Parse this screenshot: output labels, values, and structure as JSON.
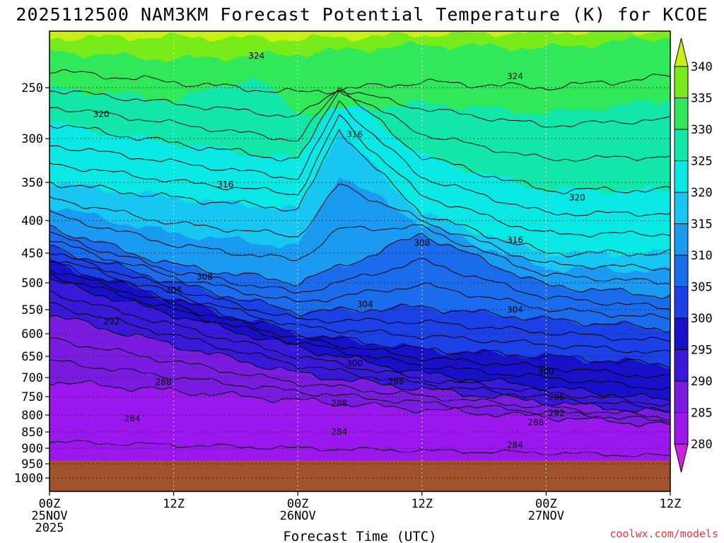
{
  "chart_data": {
    "type": "heatmap",
    "title": "2025112500 NAM3KM Forecast Potential Temperature (K) for KCOE",
    "xlabel": "Forecast Time (UTC)",
    "ylabel": "",
    "x_ticks": [
      {
        "hour": 0,
        "lines": [
          "00Z",
          "25NOV",
          "2025"
        ]
      },
      {
        "hour": 12,
        "lines": [
          "12Z"
        ]
      },
      {
        "hour": 24,
        "lines": [
          "00Z",
          "26NOV"
        ]
      },
      {
        "hour": 36,
        "lines": [
          "12Z"
        ]
      },
      {
        "hour": 48,
        "lines": [
          "00Z",
          "27NOV"
        ]
      },
      {
        "hour": 60,
        "lines": [
          "12Z"
        ]
      }
    ],
    "x_range_hours": [
      0,
      60
    ],
    "y_ticks": [
      250,
      300,
      350,
      400,
      450,
      500,
      550,
      600,
      650,
      700,
      750,
      800,
      850,
      900,
      950,
      1000
    ],
    "y_range_hpa": [
      200,
      1050
    ],
    "ground_level_hpa": 945,
    "colorbar": {
      "levels": [
        275,
        280,
        285,
        290,
        295,
        300,
        305,
        310,
        315,
        320,
        325,
        330,
        335,
        340,
        345
      ],
      "labels": [
        280,
        285,
        290,
        295,
        300,
        305,
        310,
        315,
        320,
        325,
        330,
        335,
        340
      ],
      "colors": [
        "#cc22dd",
        "#9a18ee",
        "#7a1ce0",
        "#3a18d8",
        "#1810c8",
        "#1a40e6",
        "#1a6cec",
        "#1a9af0",
        "#18c6f2",
        "#0ae8e6",
        "#12e6a8",
        "#30e85a",
        "#78ec1a",
        "#c8f012"
      ]
    },
    "series": [
      {
        "name": "288 K",
        "profile": [
          [
            0,
            710
          ],
          [
            12,
            735
          ],
          [
            24,
            760
          ],
          [
            36,
            785
          ],
          [
            48,
            805
          ],
          [
            60,
            830
          ]
        ]
      },
      {
        "name": "292 K",
        "profile": [
          [
            0,
            560
          ],
          [
            12,
            625
          ],
          [
            24,
            690
          ],
          [
            36,
            730
          ],
          [
            48,
            765
          ],
          [
            60,
            795
          ]
        ]
      },
      {
        "name": "296 K",
        "profile": [
          [
            0,
            495
          ],
          [
            12,
            560
          ],
          [
            24,
            630
          ],
          [
            36,
            690
          ],
          [
            48,
            725
          ],
          [
            60,
            760
          ]
        ]
      },
      {
        "name": "300 K",
        "profile": [
          [
            0,
            465
          ],
          [
            12,
            530
          ],
          [
            24,
            600
          ],
          [
            36,
            635
          ],
          [
            48,
            650
          ],
          [
            60,
            670
          ]
        ]
      },
      {
        "name": "304 K",
        "profile": [
          [
            0,
            440
          ],
          [
            12,
            500
          ],
          [
            24,
            555
          ],
          [
            36,
            545
          ],
          [
            48,
            570
          ],
          [
            60,
            590
          ]
        ]
      },
      {
        "name": "308 K",
        "profile": [
          [
            0,
            410
          ],
          [
            12,
            470
          ],
          [
            24,
            500
          ],
          [
            36,
            420
          ],
          [
            48,
            505
          ],
          [
            60,
            525
          ]
        ]
      },
      {
        "name": "316 K",
        "profile": [
          [
            0,
            350
          ],
          [
            12,
            370
          ],
          [
            24,
            385
          ],
          [
            28,
            290
          ],
          [
            36,
            390
          ],
          [
            48,
            450
          ],
          [
            60,
            450
          ]
        ]
      },
      {
        "name": "320 K",
        "profile": [
          [
            0,
            285
          ],
          [
            12,
            305
          ],
          [
            24,
            325
          ],
          [
            28,
            250
          ],
          [
            36,
            320
          ],
          [
            48,
            360
          ],
          [
            60,
            360
          ]
        ]
      },
      {
        "name": "324 K",
        "profile": [
          [
            0,
            235
          ],
          [
            12,
            245
          ],
          [
            24,
            255
          ],
          [
            36,
            245
          ],
          [
            48,
            250
          ],
          [
            60,
            240
          ]
        ]
      }
    ],
    "contour_labels": [
      {
        "text": "324",
        "hour": 20.0,
        "hpa": 222
      },
      {
        "text": "324",
        "hour": 45.0,
        "hpa": 240
      },
      {
        "text": "320",
        "hour": 5.0,
        "hpa": 276
      },
      {
        "text": "316",
        "hour": 29.5,
        "hpa": 296
      },
      {
        "text": "316",
        "hour": 17.0,
        "hpa": 353
      },
      {
        "text": "320",
        "hour": 51.0,
        "hpa": 370
      },
      {
        "text": "316",
        "hour": 45.0,
        "hpa": 430
      },
      {
        "text": "308",
        "hour": 36.0,
        "hpa": 434
      },
      {
        "text": "308",
        "hour": 15.0,
        "hpa": 490
      },
      {
        "text": "304",
        "hour": 12.0,
        "hpa": 513
      },
      {
        "text": "304",
        "hour": 30.5,
        "hpa": 540
      },
      {
        "text": "304",
        "hour": 45.0,
        "hpa": 550
      },
      {
        "text": "292",
        "hour": 6.0,
        "hpa": 575
      },
      {
        "text": "300",
        "hour": 29.5,
        "hpa": 667
      },
      {
        "text": "300",
        "hour": 48.0,
        "hpa": 685
      },
      {
        "text": "296",
        "hour": 33.5,
        "hpa": 710
      },
      {
        "text": "288",
        "hour": 11.0,
        "hpa": 712
      },
      {
        "text": "296",
        "hour": 49.0,
        "hpa": 752
      },
      {
        "text": "288",
        "hour": 28.0,
        "hpa": 768
      },
      {
        "text": "292",
        "hour": 49.0,
        "hpa": 795
      },
      {
        "text": "284",
        "hour": 8.0,
        "hpa": 810
      },
      {
        "text": "288",
        "hour": 47.0,
        "hpa": 822
      },
      {
        "text": "284",
        "hour": 28.0,
        "hpa": 850
      },
      {
        "text": "284",
        "hour": 45.0,
        "hpa": 890
      }
    ]
  },
  "credit": "coolwx.com/models",
  "colors": {
    "ground": "#a0522d",
    "frame": "#000000",
    "credit": "#e8363a"
  }
}
